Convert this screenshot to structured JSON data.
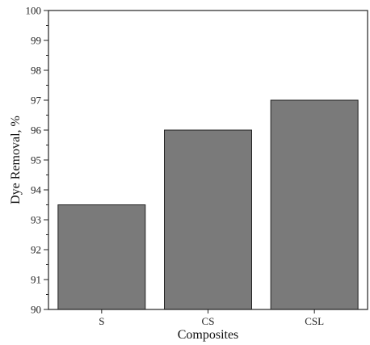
{
  "chart_data": {
    "type": "bar",
    "categories": [
      "S",
      "CS",
      "CSL"
    ],
    "values": [
      93.5,
      96.0,
      97.0
    ],
    "xlabel": "Composites",
    "ylabel": "Dye Removal, %",
    "ylim": [
      90,
      100
    ],
    "yticks": [
      "90",
      "91",
      "92",
      "93",
      "94",
      "95",
      "96",
      "97",
      "98",
      "99",
      "100"
    ],
    "grid": false,
    "legend": "none",
    "bar_color": "#7a7a7a",
    "bar_edge_color": "#222222"
  }
}
